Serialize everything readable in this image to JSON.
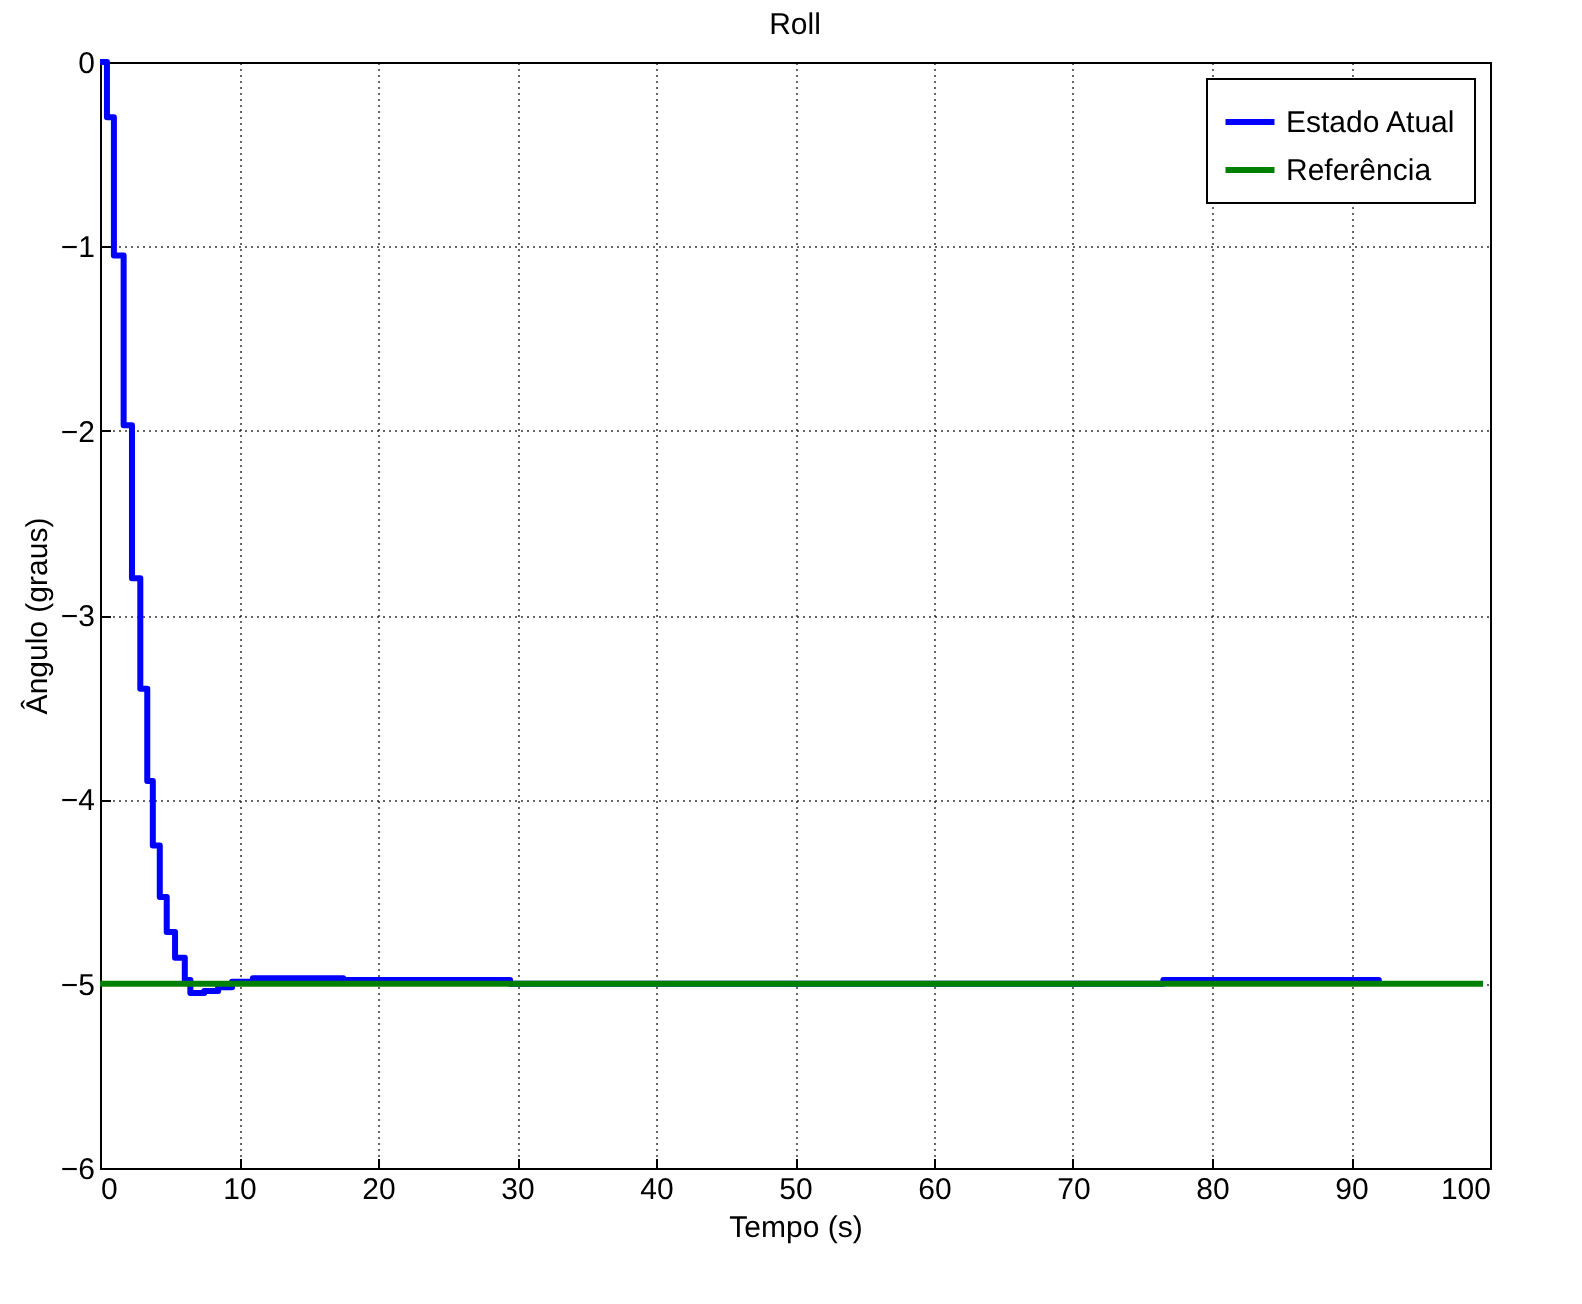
{
  "chart_data": {
    "type": "step",
    "title": "Roll",
    "xlabel": "Tempo (s)",
    "ylabel": "Ângulo (graus)",
    "xlim": [
      0,
      100
    ],
    "xticks": [
      0,
      10,
      20,
      30,
      40,
      50,
      60,
      70,
      80,
      90,
      100
    ],
    "ylim": [
      -6,
      0
    ],
    "yticks": [
      -6,
      -5,
      -4,
      -3,
      -2,
      -1,
      0
    ],
    "grid": true,
    "legend": "top right",
    "line_style": "solid",
    "series": [
      {
        "name": "Estado Atual",
        "color": "#0000ff",
        "x": [
          0,
          0.5,
          1.0,
          1.7,
          2.3,
          2.9,
          3.4,
          3.8,
          4.3,
          4.8,
          5.4,
          6.1,
          6.5,
          7.5,
          8.5,
          9.5,
          11,
          17.5,
          29.5,
          76.5,
          92
        ],
        "values": [
          0,
          -0.3,
          -1.05,
          -1.97,
          -2.8,
          -3.4,
          -3.9,
          -4.25,
          -4.53,
          -4.72,
          -4.86,
          -4.98,
          -5.05,
          -5.04,
          -5.02,
          -4.99,
          -4.97,
          -4.98,
          -5,
          -4.98,
          -5
        ]
      },
      {
        "name": "Referência",
        "color": "#008000",
        "x": [
          0,
          99.5
        ],
        "values": [
          -5,
          -5
        ]
      }
    ]
  }
}
